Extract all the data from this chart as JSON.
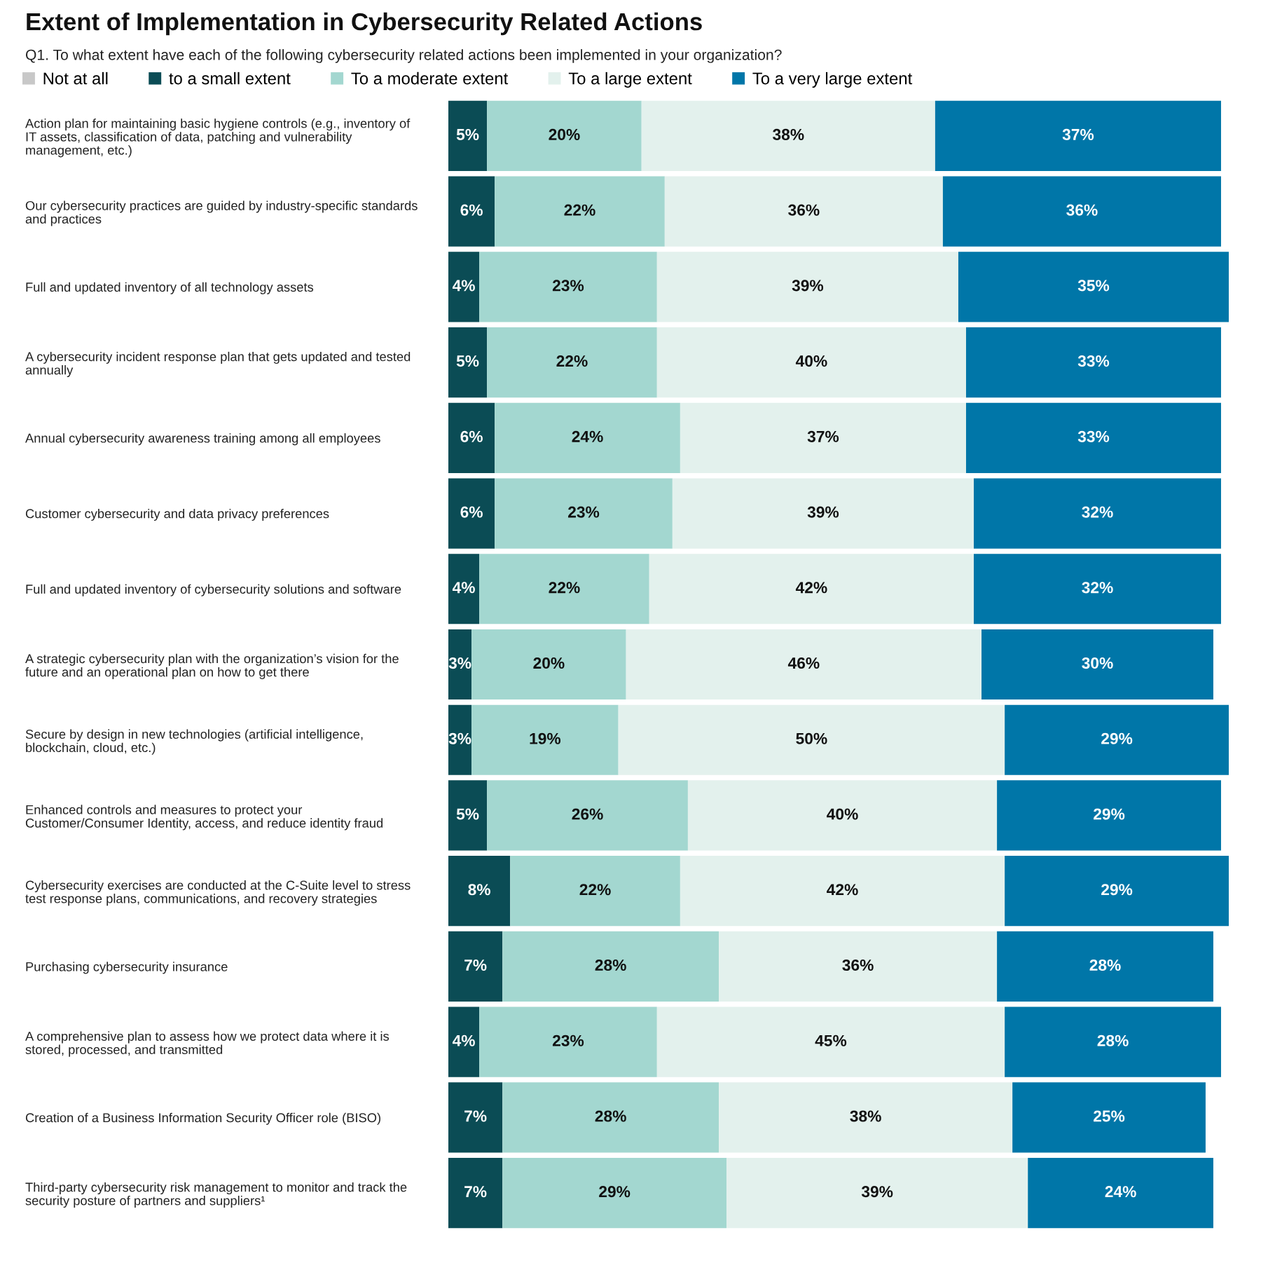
{
  "chart_data": {
    "type": "bar",
    "orientation": "horizontal",
    "stacked": true,
    "title": "Extent of Implementation in Cybersecurity Related Actions",
    "subtitle": "Q1. To what extent have each of the following cybersecurity related actions been implemented in your organization?",
    "categories": [
      "Action plan for maintaining basic hygiene controls (e.g., inventory of IT assets, classification of data, patching and vulnerability management, etc.)",
      "Our cybersecurity practices are guided by industry-specific standards and practices",
      "Full and updated inventory of all technology assets",
      "A cybersecurity incident response plan that gets updated and tested annually",
      "Annual cybersecurity awareness training among all employees",
      "Customer cybersecurity and data privacy preferences",
      "Full and updated inventory of cybersecurity solutions and software",
      "A strategic cybersecurity plan with the organization’s vision for the future and an operational plan on how to get there",
      "Secure by design in new technologies (artificial intelligence, blockchain, cloud, etc.)",
      "Enhanced controls and measures to protect your Customer/Consumer Identity, access, and reduce identity fraud",
      "Cybersecurity exercises are conducted at the C-Suite level to stress test response plans, communications, and recovery strategies",
      "Purchasing cybersecurity insurance",
      "A comprehensive plan to assess how we protect data where it is stored, processed, and transmitted",
      "Creation of a Business Information Security Officer role (BISO)",
      "Third-party cybersecurity risk management to monitor and track the security posture of partners and suppliers¹"
    ],
    "series": [
      {
        "name": "Not at all",
        "color": "#c8c8c8",
        "values": [
          0,
          0,
          0,
          0,
          0,
          0,
          0,
          0,
          0,
          0,
          0,
          0,
          0,
          0,
          0
        ]
      },
      {
        "name": "to a small extent",
        "color": "#0b4c55",
        "values": [
          5,
          6,
          4,
          5,
          6,
          6,
          4,
          3,
          3,
          5,
          8,
          7,
          4,
          7,
          7
        ],
        "value_labels": [
          "5%",
          "6%",
          "4%",
          "5%",
          "6%",
          "6%",
          "4%",
          "3%",
          "3%",
          "5%",
          "8%",
          "7%",
          "4%",
          "7%",
          "7%"
        ]
      },
      {
        "name": "To a moderate extent",
        "color": "#a3d7d0",
        "values": [
          20,
          22,
          23,
          22,
          24,
          23,
          22,
          20,
          19,
          26,
          22,
          28,
          23,
          28,
          29
        ],
        "value_labels": [
          "20%",
          "22%",
          "23%",
          "22%",
          "24%",
          "23%",
          "22%",
          "20%",
          "19%",
          "26%",
          "22%",
          "28%",
          "23%",
          "28%",
          "29%"
        ]
      },
      {
        "name": "To a large extent",
        "color": "#e3f1ed",
        "values": [
          38,
          36,
          39,
          40,
          37,
          39,
          42,
          46,
          50,
          40,
          42,
          36,
          45,
          38,
          39
        ],
        "value_labels": [
          "38%",
          "36%",
          "39%",
          "40%",
          "37%",
          "39%",
          "42%",
          "46%",
          "50%",
          "40%",
          "42%",
          "36%",
          "45%",
          "38%",
          "39%"
        ]
      },
      {
        "name": "To a very large extent",
        "color": "#0076a8",
        "values": [
          37,
          36,
          35,
          33,
          33,
          32,
          32,
          30,
          29,
          29,
          29,
          28,
          28,
          25,
          24
        ],
        "value_labels": [
          "37%",
          "36%",
          "35%",
          "33%",
          "33%",
          "32%",
          "32%",
          "30%",
          "29%",
          "29%",
          "29%",
          "28%",
          "28%",
          "25%",
          "24%"
        ]
      }
    ],
    "legend": "top",
    "tick_labels": "y"
  }
}
